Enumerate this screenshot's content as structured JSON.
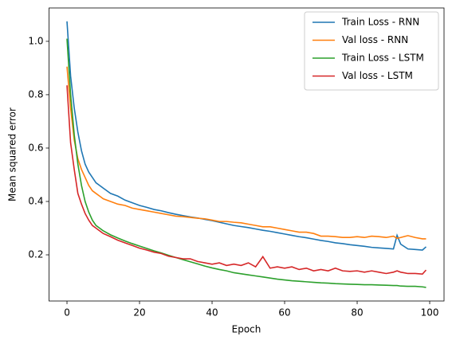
{
  "chart_data": {
    "type": "line",
    "xlabel": "Epoch",
    "ylabel": "Mean squared error",
    "x": [
      0,
      1,
      2,
      3,
      4,
      5,
      6,
      7,
      8,
      9,
      10,
      12,
      14,
      16,
      18,
      20,
      22,
      24,
      26,
      28,
      30,
      32,
      34,
      36,
      38,
      40,
      42,
      44,
      46,
      48,
      50,
      52,
      54,
      56,
      58,
      60,
      62,
      64,
      66,
      68,
      70,
      72,
      74,
      76,
      78,
      80,
      82,
      84,
      86,
      88,
      90,
      91,
      92,
      94,
      96,
      98,
      99
    ],
    "series": [
      {
        "name": "Train Loss - RNN",
        "color": "#1f77b4",
        "values": [
          1.075,
          0.87,
          0.75,
          0.66,
          0.59,
          0.54,
          0.51,
          0.49,
          0.47,
          0.46,
          0.45,
          0.43,
          0.42,
          0.405,
          0.395,
          0.385,
          0.378,
          0.37,
          0.365,
          0.358,
          0.352,
          0.347,
          0.342,
          0.338,
          0.333,
          0.328,
          0.322,
          0.316,
          0.31,
          0.306,
          0.302,
          0.297,
          0.292,
          0.288,
          0.283,
          0.278,
          0.273,
          0.268,
          0.264,
          0.259,
          0.254,
          0.25,
          0.245,
          0.242,
          0.238,
          0.235,
          0.232,
          0.228,
          0.226,
          0.224,
          0.222,
          0.273,
          0.24,
          0.222,
          0.22,
          0.218,
          0.23
        ]
      },
      {
        "name": "Val loss - RNN",
        "color": "#ff7f0e",
        "values": [
          0.905,
          0.75,
          0.63,
          0.56,
          0.52,
          0.49,
          0.46,
          0.44,
          0.43,
          0.42,
          0.41,
          0.4,
          0.39,
          0.385,
          0.375,
          0.37,
          0.365,
          0.36,
          0.355,
          0.35,
          0.345,
          0.343,
          0.34,
          0.337,
          0.335,
          0.33,
          0.325,
          0.325,
          0.322,
          0.32,
          0.315,
          0.31,
          0.305,
          0.305,
          0.3,
          0.295,
          0.29,
          0.285,
          0.285,
          0.28,
          0.27,
          0.27,
          0.268,
          0.265,
          0.265,
          0.268,
          0.265,
          0.27,
          0.268,
          0.265,
          0.27,
          0.262,
          0.265,
          0.272,
          0.265,
          0.26,
          0.26
        ]
      },
      {
        "name": "Train Loss - LSTM",
        "color": "#2ca02c",
        "values": [
          1.01,
          0.8,
          0.65,
          0.54,
          0.46,
          0.4,
          0.36,
          0.33,
          0.31,
          0.3,
          0.29,
          0.275,
          0.263,
          0.252,
          0.242,
          0.233,
          0.224,
          0.215,
          0.207,
          0.198,
          0.19,
          0.182,
          0.174,
          0.166,
          0.158,
          0.151,
          0.145,
          0.14,
          0.133,
          0.129,
          0.125,
          0.121,
          0.117,
          0.113,
          0.109,
          0.106,
          0.103,
          0.101,
          0.099,
          0.097,
          0.095,
          0.094,
          0.092,
          0.091,
          0.09,
          0.089,
          0.088,
          0.088,
          0.087,
          0.086,
          0.085,
          0.085,
          0.083,
          0.082,
          0.082,
          0.08,
          0.078
        ]
      },
      {
        "name": "Val loss - LSTM",
        "color": "#d62728",
        "values": [
          0.835,
          0.62,
          0.52,
          0.43,
          0.39,
          0.355,
          0.33,
          0.31,
          0.3,
          0.29,
          0.28,
          0.268,
          0.255,
          0.245,
          0.235,
          0.225,
          0.218,
          0.21,
          0.205,
          0.195,
          0.19,
          0.185,
          0.185,
          0.175,
          0.17,
          0.165,
          0.17,
          0.16,
          0.165,
          0.16,
          0.17,
          0.155,
          0.193,
          0.15,
          0.155,
          0.15,
          0.155,
          0.145,
          0.15,
          0.14,
          0.145,
          0.14,
          0.15,
          0.14,
          0.138,
          0.14,
          0.135,
          0.14,
          0.135,
          0.13,
          0.135,
          0.14,
          0.135,
          0.13,
          0.13,
          0.128,
          0.143
        ]
      }
    ],
    "xlim": [
      -4.95,
      103.95
    ],
    "ylim": [
      0.027,
      1.125
    ],
    "xticks": [
      0,
      20,
      40,
      60,
      80,
      100
    ],
    "yticks": [
      0.2,
      0.4,
      0.6,
      0.8,
      {
        "value": 1.0,
        "label": "1.0"
      }
    ],
    "legend": "upper right",
    "grid": false
  }
}
